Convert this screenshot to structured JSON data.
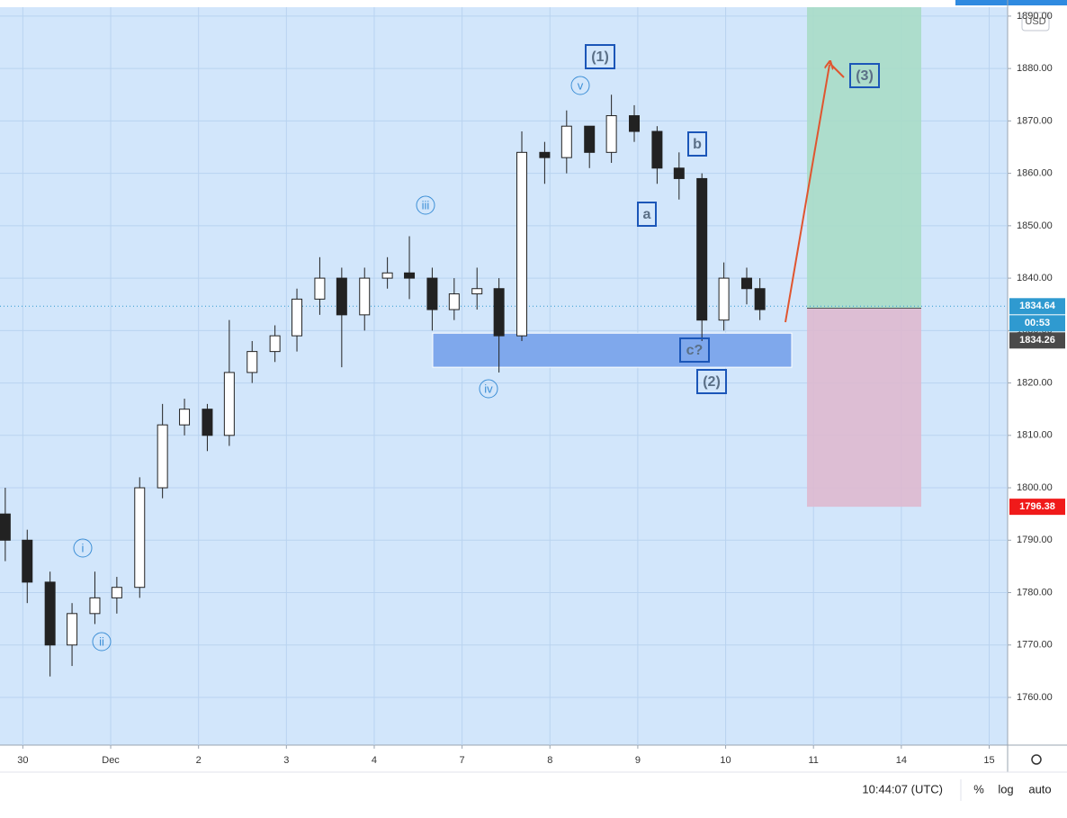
{
  "chart_data": {
    "type": "candlestick",
    "currency": "USD",
    "xlim": [
      -0.26,
      11.21
    ],
    "xticks": [
      {
        "value": 0,
        "label": "30"
      },
      {
        "value": 1,
        "label": "Dec"
      },
      {
        "value": 2,
        "label": "2"
      },
      {
        "value": 3,
        "label": "3"
      },
      {
        "value": 4,
        "label": "4"
      },
      {
        "value": 5,
        "label": "7"
      },
      {
        "value": 6,
        "label": "8"
      },
      {
        "value": 7,
        "label": "9"
      },
      {
        "value": 8,
        "label": "10"
      },
      {
        "value": 9,
        "label": "11"
      },
      {
        "value": 10,
        "label": "14"
      },
      {
        "value": 11,
        "label": "15"
      }
    ],
    "ylim": [
      1750.9,
      1891.7
    ],
    "yticks": [
      {
        "value": 1760,
        "label": "1760.00"
      },
      {
        "value": 1770,
        "label": "1770.00"
      },
      {
        "value": 1780,
        "label": "1780.00"
      },
      {
        "value": 1790,
        "label": "1790.00"
      },
      {
        "value": 1800,
        "label": "1800.00"
      },
      {
        "value": 1810,
        "label": "1810.00"
      },
      {
        "value": 1820,
        "label": "1820.00"
      },
      {
        "value": 1830,
        "label": "1830.00"
      },
      {
        "value": 1840,
        "label": "1840.00"
      },
      {
        "value": 1850,
        "label": "1850.00"
      },
      {
        "value": 1860,
        "label": "1860.00"
      },
      {
        "value": 1870,
        "label": "1870.00"
      },
      {
        "value": 1880,
        "label": "1880.00"
      },
      {
        "value": 1890,
        "label": "1890.00"
      }
    ],
    "grid": true,
    "up_color": "#ffffff",
    "down_color": "#222222",
    "x": [
      -0.2,
      0.05,
      0.31,
      0.56,
      0.82,
      1.07,
      1.33,
      1.59,
      1.84,
      2.1,
      2.35,
      2.61,
      2.87,
      3.12,
      3.38,
      3.63,
      3.89,
      4.15,
      4.4,
      4.66,
      4.91,
      5.17,
      5.42,
      5.68,
      5.94,
      6.19,
      6.45,
      6.7,
      6.96,
      7.22,
      7.47,
      7.73,
      7.98,
      8.24,
      8.39
    ],
    "open": [
      1795,
      1790,
      1782,
      1770,
      1776,
      1779,
      1781,
      1800,
      1812,
      1815,
      1810,
      1822,
      1826,
      1829,
      1836,
      1840,
      1833,
      1840,
      1841,
      1840,
      1834,
      1837,
      1838,
      1829,
      1864,
      1863,
      1869,
      1864,
      1871,
      1868,
      1861,
      1859,
      1832,
      1840,
      1838
    ],
    "high": [
      1800,
      1792,
      1784,
      1778,
      1784,
      1783,
      1802,
      1816,
      1817,
      1816,
      1832,
      1828,
      1831,
      1838,
      1844,
      1842,
      1842,
      1844,
      1848,
      1842,
      1840,
      1842,
      1840,
      1868,
      1866,
      1872,
      1868,
      1875,
      1873,
      1869,
      1864,
      1860,
      1843,
      1842,
      1840
    ],
    "low": [
      1786,
      1778,
      1764,
      1766,
      1774,
      1776,
      1779,
      1798,
      1810,
      1807,
      1808,
      1820,
      1824,
      1826,
      1833,
      1823,
      1830,
      1838,
      1836,
      1830,
      1832,
      1834,
      1822,
      1828,
      1858,
      1860,
      1861,
      1862,
      1866,
      1858,
      1855,
      1828,
      1830,
      1835,
      1832
    ],
    "close": [
      1790,
      1782,
      1770,
      1776,
      1779,
      1781,
      1800,
      1812,
      1815,
      1810,
      1822,
      1826,
      1829,
      1836,
      1840,
      1833,
      1840,
      1841,
      1840,
      1834,
      1837,
      1838,
      1829,
      1864,
      1863,
      1869,
      1864,
      1871,
      1868,
      1861,
      1859,
      1832,
      1840,
      1838,
      1834
    ],
    "zone": {
      "high": 1829.5,
      "low": 1823,
      "color": "#7fa8ec"
    },
    "position": {
      "entry": 1834.26,
      "stop": 1796.38,
      "target_color": "#a8dcc6",
      "stop_color": "#deb9cf"
    },
    "last_price": 1834.64,
    "countdown": "00:53",
    "annotations": [
      {
        "text": "(1)",
        "style": "box"
      },
      {
        "text": "v",
        "style": "circle"
      },
      {
        "text": "iii",
        "style": "circle"
      },
      {
        "text": "iv",
        "style": "circle"
      },
      {
        "text": "i",
        "style": "circle"
      },
      {
        "text": "ii",
        "style": "circle"
      },
      {
        "text": "a",
        "style": "box"
      },
      {
        "text": "b",
        "style": "box"
      },
      {
        "text": "c?",
        "style": "box"
      },
      {
        "text": "(2)",
        "style": "box"
      },
      {
        "text": "(3)",
        "style": "box"
      }
    ],
    "clock": "10:44:07 (UTC)",
    "scale_options": [
      "%",
      "log",
      "auto"
    ]
  }
}
